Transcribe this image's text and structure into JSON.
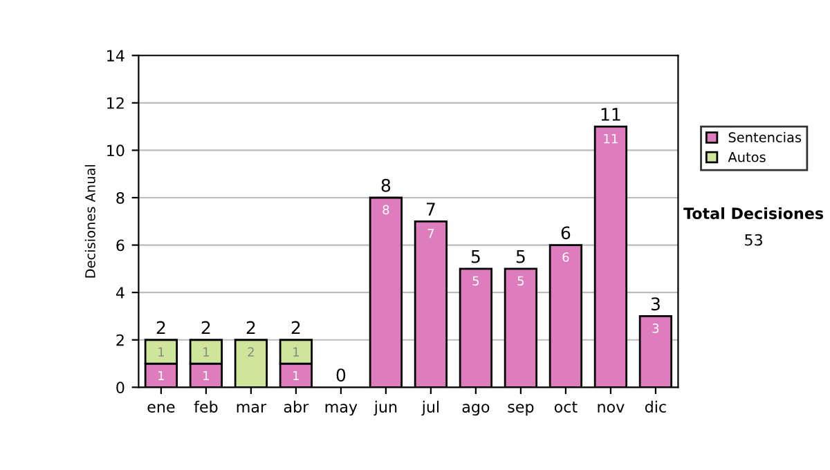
{
  "chart_data": {
    "type": "bar",
    "stacked": true,
    "ylabel": "Decisiones Anual",
    "categories": [
      "ene",
      "feb",
      "mar",
      "abr",
      "may",
      "jun",
      "jul",
      "ago",
      "sep",
      "oct",
      "nov",
      "dic"
    ],
    "series": [
      {
        "name": "Sentencias",
        "color": "#dd7dbd",
        "values": [
          1,
          1,
          0,
          1,
          0,
          8,
          7,
          5,
          5,
          6,
          11,
          3
        ],
        "value_labels": [
          "1",
          "1",
          null,
          "1",
          null,
          "8",
          "7",
          "5",
          "5",
          "6",
          "11",
          "3"
        ]
      },
      {
        "name": "Autos",
        "color": "#cde69a",
        "values": [
          1,
          1,
          2,
          1,
          0,
          0,
          0,
          0,
          0,
          0,
          0,
          0
        ],
        "value_labels": [
          "1",
          "1",
          "2",
          "1",
          null,
          null,
          null,
          null,
          null,
          null,
          null,
          null
        ]
      }
    ],
    "totals": [
      "2",
      "2",
      "2",
      "2",
      "0",
      "8",
      "7",
      "5",
      "5",
      "6",
      "11",
      "3"
    ],
    "ylim": [
      0,
      14
    ],
    "yticks": [
      0,
      2,
      4,
      6,
      8,
      10,
      12,
      14
    ],
    "grid": "y",
    "legend": "right",
    "annotations": [
      "Total Decisiones",
      "53"
    ]
  }
}
